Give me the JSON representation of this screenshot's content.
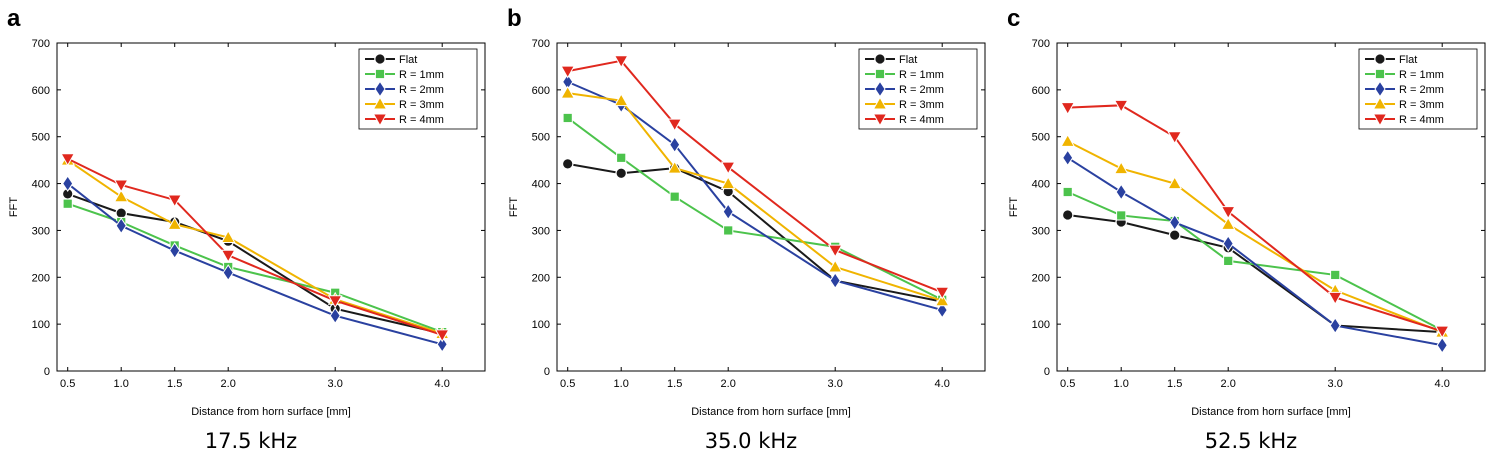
{
  "chart_data": [
    {
      "panel": "a",
      "caption": "17.5 kHz",
      "type": "line",
      "xlabel": "Distance from horn surface [mm]",
      "ylabel": "FFT",
      "x": [
        0.5,
        1.0,
        1.5,
        2.0,
        3.0,
        4.0
      ],
      "x_ticks": [
        "0.5",
        "1.0",
        "1.5",
        "2.0",
        "3.0",
        "4.0"
      ],
      "y_ticks": [
        "0",
        "100",
        "200",
        "300",
        "400",
        "500",
        "600",
        "700"
      ],
      "ylim": [
        0,
        700
      ],
      "legend_position": "top-right",
      "series": [
        {
          "name": "Flat",
          "values": [
            378,
            337,
            318,
            277,
            133,
            80
          ]
        },
        {
          "name": "R = 1mm",
          "values": [
            357,
            318,
            268,
            222,
            167,
            83
          ]
        },
        {
          "name": "R = 2mm",
          "values": [
            400,
            310,
            257,
            210,
            118,
            57
          ]
        },
        {
          "name": "R = 3mm",
          "values": [
            450,
            372,
            313,
            285,
            153,
            80
          ]
        },
        {
          "name": "R = 4mm",
          "values": [
            453,
            397,
            365,
            247,
            150,
            77
          ]
        }
      ]
    },
    {
      "panel": "b",
      "caption": "35.0 kHz",
      "type": "line",
      "xlabel": "Distance from horn surface [mm]",
      "ylabel": "FFT",
      "x": [
        0.5,
        1.0,
        1.5,
        2.0,
        3.0,
        4.0
      ],
      "x_ticks": [
        "0.5",
        "1.0",
        "1.5",
        "2.0",
        "3.0",
        "4.0"
      ],
      "y_ticks": [
        "0",
        "100",
        "200",
        "300",
        "400",
        "500",
        "600",
        "700"
      ],
      "ylim": [
        0,
        700
      ],
      "legend_position": "top-right",
      "series": [
        {
          "name": "Flat",
          "values": [
            442,
            422,
            433,
            383,
            193,
            148
          ]
        },
        {
          "name": "R = 1mm",
          "values": [
            540,
            455,
            372,
            300,
            265,
            152
          ]
        },
        {
          "name": "R = 2mm",
          "values": [
            617,
            568,
            483,
            340,
            193,
            130
          ]
        },
        {
          "name": "R = 3mm",
          "values": [
            593,
            577,
            433,
            400,
            222,
            150
          ]
        },
        {
          "name": "R = 4mm",
          "values": [
            640,
            662,
            527,
            435,
            258,
            168
          ]
        }
      ]
    },
    {
      "panel": "c",
      "caption": "52.5 kHz",
      "type": "line",
      "xlabel": "Distance from horn surface [mm]",
      "ylabel": "FFT",
      "x": [
        0.5,
        1.0,
        1.5,
        2.0,
        3.0,
        4.0
      ],
      "x_ticks": [
        "0.5",
        "1.0",
        "1.5",
        "2.0",
        "3.0",
        "4.0"
      ],
      "y_ticks": [
        "0",
        "100",
        "200",
        "300",
        "400",
        "500",
        "600",
        "700"
      ],
      "ylim": [
        0,
        700
      ],
      "legend_position": "top-right",
      "series": [
        {
          "name": "Flat",
          "values": [
            333,
            318,
            290,
            263,
            97,
            83
          ]
        },
        {
          "name": "R = 1mm",
          "values": [
            382,
            332,
            320,
            235,
            205,
            87
          ]
        },
        {
          "name": "R = 2mm",
          "values": [
            455,
            382,
            317,
            272,
            97,
            55
          ]
        },
        {
          "name": "R = 3mm",
          "values": [
            490,
            432,
            400,
            313,
            172,
            83
          ]
        },
        {
          "name": "R = 4mm",
          "values": [
            562,
            567,
            500,
            340,
            157,
            85
          ]
        }
      ]
    }
  ],
  "series_styles": [
    {
      "color": "#1a1a1a",
      "marker": "circle"
    },
    {
      "color": "#4cc34c",
      "marker": "square"
    },
    {
      "color": "#2a41a0",
      "marker": "diamond"
    },
    {
      "color": "#f0b400",
      "marker": "triangle-up"
    },
    {
      "color": "#e0281e",
      "marker": "triangle-down"
    }
  ]
}
